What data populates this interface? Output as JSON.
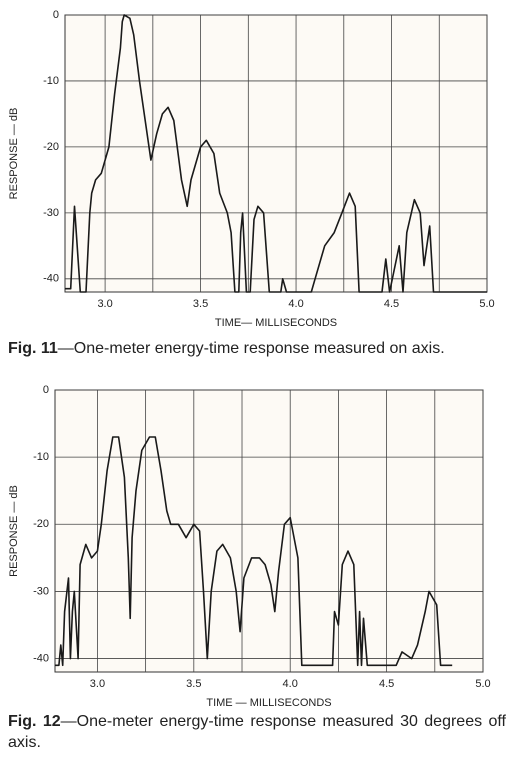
{
  "chart_data": [
    {
      "type": "line",
      "ylabel": "RESPONSE — dB",
      "xlabel": "TIME— MILLISECONDS",
      "caption_label": "Fig. 11",
      "caption": "—One-meter energy-time response measured on axis.",
      "xlim": [
        2.79,
        5.0
      ],
      "ylim": [
        -42,
        0
      ],
      "xticks": [
        {
          "value": 3,
          "label": "3.0"
        },
        {
          "value": 3.5,
          "label": "3.5"
        },
        {
          "value": 4,
          "label": "4.0"
        },
        {
          "value": 4.5,
          "label": "4.5"
        },
        {
          "value": 5,
          "label": "5.0"
        }
      ],
      "xgrid": [
        3.25,
        3.75,
        4.25,
        4.75
      ],
      "yticks": [
        0,
        -10,
        -20,
        -30,
        -40
      ],
      "grid": true,
      "x": [
        2.79,
        2.82,
        2.84,
        2.87,
        2.9,
        2.92,
        2.93,
        2.95,
        2.98,
        3.0,
        3.02,
        3.05,
        3.08,
        3.09,
        3.1,
        3.13,
        3.15,
        3.18,
        3.22,
        3.24,
        3.27,
        3.3,
        3.33,
        3.36,
        3.4,
        3.43,
        3.45,
        3.5,
        3.53,
        3.57,
        3.6,
        3.64,
        3.66,
        3.68,
        3.7,
        3.71,
        3.72,
        3.74,
        3.76,
        3.78,
        3.8,
        3.83,
        3.86,
        3.92,
        3.93,
        3.95,
        4.08,
        4.1,
        4.15,
        4.2,
        4.24,
        4.28,
        4.31,
        4.33,
        4.45,
        4.47,
        4.49,
        4.54,
        4.56,
        4.58,
        4.62,
        4.65,
        4.67,
        4.7,
        4.72,
        5.0
      ],
      "series": [
        {
          "name": "Response",
          "color": "#1a1a1a",
          "values": [
            -41.5,
            -41.5,
            -29,
            -42,
            -42,
            -30,
            -27,
            -25,
            -24,
            -22,
            -20,
            -12,
            -5,
            -1,
            0,
            -0.5,
            -3,
            -10,
            -18,
            -22,
            -18,
            -15,
            -14,
            -16,
            -25,
            -29,
            -25,
            -20,
            -19,
            -21,
            -27,
            -30,
            -33,
            -42,
            -42,
            -33,
            -30,
            -42,
            -42,
            -31,
            -29,
            -30,
            -42,
            -42,
            -40,
            -42,
            -42,
            -40,
            -35,
            -33,
            -30,
            -27,
            -29,
            -42,
            -42,
            -37,
            -42,
            -35,
            -42,
            -33,
            -28,
            -30,
            -38,
            -32,
            -42,
            -42
          ]
        }
      ]
    },
    {
      "type": "line",
      "ylabel": "RESPONSE — dB",
      "xlabel": "TIME — MILLISECONDS",
      "caption_label": "Fig. 12",
      "caption": "—One-meter energy-time response measured 30 degrees off axis.",
      "xlim": [
        2.78,
        5.0
      ],
      "ylim": [
        -42,
        0
      ],
      "xticks": [
        {
          "value": 3,
          "label": "3.0"
        },
        {
          "value": 3.5,
          "label": "3.5"
        },
        {
          "value": 4,
          "label": "4.0"
        },
        {
          "value": 4.5,
          "label": "4.5"
        },
        {
          "value": 5,
          "label": "5.0"
        }
      ],
      "xgrid": [
        3.25,
        3.75,
        4.25,
        4.75
      ],
      "yticks": [
        0,
        -10,
        -20,
        -30,
        -40
      ],
      "grid": true,
      "x": [
        2.78,
        2.8,
        2.81,
        2.82,
        2.83,
        2.85,
        2.86,
        2.87,
        2.88,
        2.9,
        2.91,
        2.94,
        2.97,
        3.0,
        3.02,
        3.05,
        3.08,
        3.11,
        3.14,
        3.16,
        3.17,
        3.18,
        3.2,
        3.23,
        3.27,
        3.3,
        3.33,
        3.36,
        3.38,
        3.42,
        3.46,
        3.5,
        3.53,
        3.55,
        3.57,
        3.59,
        3.62,
        3.65,
        3.69,
        3.72,
        3.74,
        3.76,
        3.8,
        3.84,
        3.87,
        3.9,
        3.92,
        3.94,
        3.97,
        4.0,
        4.04,
        4.06,
        4.22,
        4.23,
        4.25,
        4.27,
        4.3,
        4.33,
        4.35,
        4.36,
        4.37,
        4.38,
        4.4,
        4.55,
        4.58,
        4.63,
        4.66,
        4.7,
        4.72,
        4.76,
        4.78,
        4.84
      ],
      "series": [
        {
          "name": "Response",
          "color": "#1a1a1a",
          "values": [
            -41,
            -41,
            -38,
            -41,
            -33,
            -28,
            -40,
            -33,
            -30,
            -40,
            -26,
            -23,
            -25,
            -24,
            -20,
            -12,
            -7,
            -7,
            -13,
            -25,
            -34,
            -22,
            -15,
            -9,
            -7,
            -7,
            -12,
            -18,
            -20,
            -20,
            -22,
            -20,
            -21,
            -30,
            -40,
            -30,
            -24,
            -23,
            -25,
            -30,
            -36,
            -28,
            -25,
            -25,
            -26,
            -29,
            -33,
            -27,
            -20,
            -19,
            -25,
            -41,
            -41,
            -33,
            -35,
            -26,
            -24,
            -26,
            -41,
            -33,
            -41,
            -34,
            -41,
            -41,
            -39,
            -40,
            -38,
            -33,
            -30,
            -32,
            -41,
            -41
          ]
        }
      ]
    }
  ]
}
